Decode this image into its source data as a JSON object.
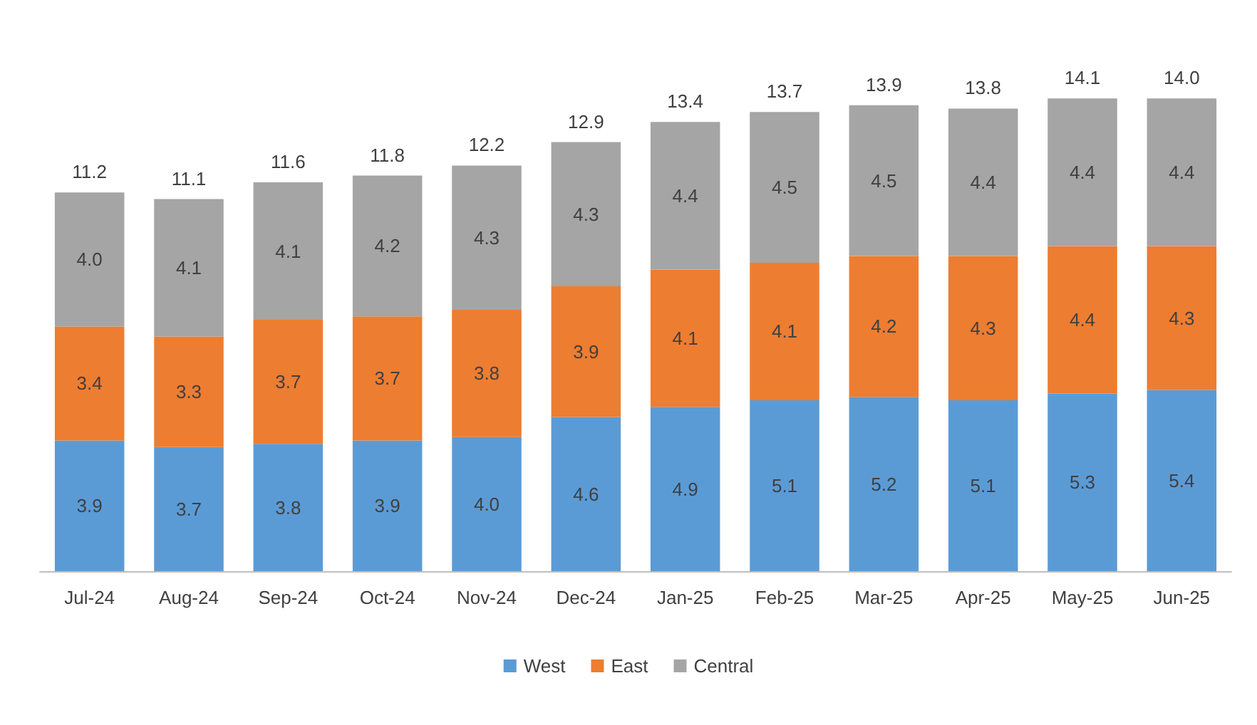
{
  "chart_data": {
    "type": "bar",
    "stacked": true,
    "categories": [
      "Jul-24",
      "Aug-24",
      "Sep-24",
      "Oct-24",
      "Nov-24",
      "Dec-24",
      "Jan-25",
      "Feb-25",
      "Mar-25",
      "Apr-25",
      "May-25",
      "Jun-25"
    ],
    "series": [
      {
        "name": "West",
        "color": "#5b9bd5",
        "values": [
          3.9,
          3.7,
          3.8,
          3.9,
          4.0,
          4.6,
          4.9,
          5.1,
          5.2,
          5.1,
          5.3,
          5.4
        ],
        "value_labels": [
          "3.9",
          "3.7",
          "3.8",
          "3.9",
          "4.0",
          "4.6",
          "4.9",
          "5.1",
          "5.2",
          "5.1",
          "5.3",
          "5.4"
        ]
      },
      {
        "name": "East",
        "color": "#ed7d31",
        "values": [
          3.4,
          3.3,
          3.7,
          3.7,
          3.8,
          3.9,
          4.1,
          4.1,
          4.2,
          4.3,
          4.4,
          4.3
        ],
        "value_labels": [
          "3.4",
          "3.3",
          "3.7",
          "3.7",
          "3.8",
          "3.9",
          "4.1",
          "4.1",
          "4.2",
          "4.3",
          "4.4",
          "4.3"
        ]
      },
      {
        "name": "Central",
        "color": "#a5a5a5",
        "values": [
          4.0,
          4.1,
          4.1,
          4.2,
          4.3,
          4.3,
          4.4,
          4.5,
          4.5,
          4.4,
          4.4,
          4.4
        ],
        "value_labels": [
          "4.0",
          "4.1",
          "4.1",
          "4.2",
          "4.3",
          "4.3",
          "4.4",
          "4.5",
          "4.5",
          "4.4",
          "4.4",
          "4.4"
        ]
      }
    ],
    "totals": [
      "11.2",
      "11.1",
      "11.6",
      "11.8",
      "12.2",
      "12.9",
      "13.4",
      "13.7",
      "13.9",
      "13.8",
      "14.1",
      "14.0"
    ],
    "legend": "bottom"
  }
}
